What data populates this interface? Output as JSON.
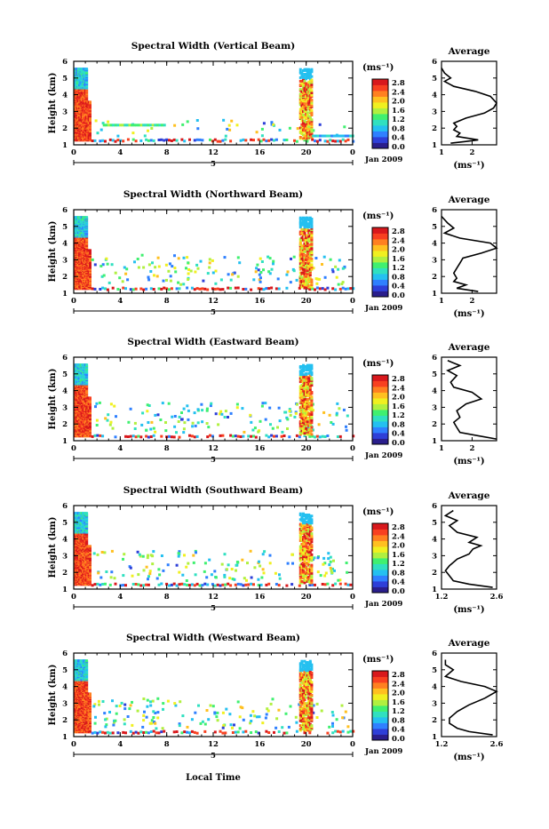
{
  "page": {
    "x_axis_label": "Local Time",
    "date_label": "Jan 2009",
    "day_marker": "5",
    "colorbar_unit": "(ms⁻¹)",
    "average_title": "Average",
    "average_xlabel": "(ms⁻¹)",
    "colorbar_colors": [
      "#2a1e8c",
      "#2e3fd8",
      "#2f80ff",
      "#24c0f0",
      "#30e0c0",
      "#40f070",
      "#b0f040",
      "#f0f020",
      "#ffc020",
      "#ff8020",
      "#f84020",
      "#d8181c"
    ]
  },
  "chart_data": [
    {
      "type": "heatmap",
      "title": "Spectral Width (Vertical Beam)",
      "ylabel": "Height (km)",
      "xlabel": "Local Time",
      "x_ticks": [
        "0",
        "4",
        "8",
        "12",
        "16",
        "20",
        "0"
      ],
      "y_ticks": [
        "1",
        "2",
        "3",
        "4",
        "5",
        "6"
      ],
      "xlim": [
        0,
        24
      ],
      "ylim": [
        1,
        6
      ],
      "colorbar": {
        "unit": "(ms⁻¹)",
        "ticks": [
          "2.8",
          "2.4",
          "2.0",
          "1.6",
          "1.2",
          "0.8",
          "0.4",
          "0.0"
        ],
        "range": [
          0.0,
          2.8
        ]
      },
      "date_label": "Jan 2009",
      "day_marker": "5",
      "average": {
        "title": "Average",
        "xlabel": "(ms⁻¹)",
        "x_ticks": [
          "1",
          "2"
        ],
        "xlim": [
          1,
          2.8
        ],
        "profile": [
          [
            1.3,
            1.1
          ],
          [
            1.8,
            1.2
          ],
          [
            2.2,
            1.3
          ],
          [
            1.5,
            1.5
          ],
          [
            1.6,
            1.7
          ],
          [
            1.4,
            1.9
          ],
          [
            1.5,
            2.1
          ],
          [
            1.4,
            2.3
          ],
          [
            1.8,
            2.6
          ],
          [
            2.4,
            2.9
          ],
          [
            2.7,
            3.2
          ],
          [
            2.8,
            3.5
          ],
          [
            2.6,
            3.9
          ],
          [
            2.1,
            4.2
          ],
          [
            1.4,
            4.5
          ],
          [
            1.1,
            4.8
          ],
          [
            1.3,
            5.0
          ],
          [
            1.1,
            5.3
          ],
          [
            1.0,
            5.6
          ]
        ]
      }
    },
    {
      "type": "heatmap",
      "title": "Spectral Width (Northward Beam)",
      "ylabel": "Height (km)",
      "xlabel": "Local Time",
      "x_ticks": [
        "0",
        "4",
        "8",
        "12",
        "16",
        "20",
        "0"
      ],
      "y_ticks": [
        "1",
        "2",
        "3",
        "4",
        "5",
        "6"
      ],
      "xlim": [
        0,
        24
      ],
      "ylim": [
        1,
        6
      ],
      "colorbar": {
        "unit": "(ms⁻¹)",
        "ticks": [
          "2.8",
          "2.4",
          "2.0",
          "1.6",
          "1.2",
          "0.8",
          "0.4",
          "0.0"
        ],
        "range": [
          0.0,
          2.8
        ]
      },
      "date_label": "Jan 2009",
      "day_marker": "5",
      "average": {
        "title": "Average",
        "xlabel": "(ms⁻¹)",
        "x_ticks": [
          "1",
          "2"
        ],
        "xlim": [
          1,
          2.8
        ],
        "profile": [
          [
            2.2,
            1.1
          ],
          [
            1.5,
            1.3
          ],
          [
            1.8,
            1.5
          ],
          [
            1.4,
            1.7
          ],
          [
            1.5,
            1.9
          ],
          [
            1.4,
            2.2
          ],
          [
            1.5,
            2.5
          ],
          [
            1.6,
            2.8
          ],
          [
            1.7,
            3.1
          ],
          [
            2.3,
            3.4
          ],
          [
            2.8,
            3.7
          ],
          [
            2.6,
            4.0
          ],
          [
            1.6,
            4.3
          ],
          [
            1.1,
            4.6
          ],
          [
            1.4,
            4.9
          ],
          [
            1.2,
            5.2
          ],
          [
            1.0,
            5.6
          ]
        ]
      }
    },
    {
      "type": "heatmap",
      "title": "Spectral Width (Eastward Beam)",
      "ylabel": "Height (km)",
      "xlabel": "Local Time",
      "x_ticks": [
        "0",
        "4",
        "8",
        "12",
        "16",
        "20",
        "0"
      ],
      "y_ticks": [
        "1",
        "2",
        "3",
        "4",
        "5",
        "6"
      ],
      "xlim": [
        0,
        24
      ],
      "ylim": [
        1,
        6
      ],
      "colorbar": {
        "unit": "(ms⁻¹)",
        "ticks": [
          "2.8",
          "2.4",
          "2.0",
          "1.6",
          "1.2",
          "0.8",
          "0.4",
          "0.0"
        ],
        "range": [
          0.0,
          2.8
        ]
      },
      "date_label": "Jan 2009",
      "day_marker": "5",
      "average": {
        "title": "Average",
        "xlabel": "(ms⁻¹)",
        "x_ticks": [
          "1",
          "2"
        ],
        "xlim": [
          1,
          2.8
        ],
        "profile": [
          [
            2.8,
            1.1
          ],
          [
            2.2,
            1.3
          ],
          [
            1.6,
            1.5
          ],
          [
            1.5,
            1.8
          ],
          [
            1.4,
            2.1
          ],
          [
            1.6,
            2.4
          ],
          [
            1.5,
            2.8
          ],
          [
            1.8,
            3.2
          ],
          [
            2.3,
            3.5
          ],
          [
            2.0,
            3.9
          ],
          [
            1.4,
            4.2
          ],
          [
            1.3,
            4.5
          ],
          [
            1.5,
            4.9
          ],
          [
            1.2,
            5.2
          ],
          [
            1.6,
            5.5
          ],
          [
            1.2,
            5.8
          ]
        ]
      }
    },
    {
      "type": "heatmap",
      "title": "Spectral Width (Southward Beam)",
      "ylabel": "Height (km)",
      "xlabel": "Local Time",
      "x_ticks": [
        "0",
        "4",
        "8",
        "12",
        "16",
        "20",
        "0"
      ],
      "y_ticks": [
        "1",
        "2",
        "3",
        "4",
        "5",
        "6"
      ],
      "xlim": [
        0,
        24
      ],
      "ylim": [
        1,
        6
      ],
      "colorbar": {
        "unit": "(ms⁻¹)",
        "ticks": [
          "2.8",
          "2.4",
          "2.0",
          "1.6",
          "1.2",
          "0.8",
          "0.4",
          "0.0"
        ],
        "range": [
          0.0,
          2.8
        ]
      },
      "date_label": "Jan 2009",
      "day_marker": "5",
      "average": {
        "title": "Average",
        "xlabel": "(ms⁻¹)",
        "x_ticks": [
          "1.2",
          "2.6"
        ],
        "xlim": [
          1.2,
          2.6
        ],
        "profile": [
          [
            2.5,
            1.1
          ],
          [
            1.9,
            1.3
          ],
          [
            1.5,
            1.5
          ],
          [
            1.4,
            1.8
          ],
          [
            1.3,
            2.1
          ],
          [
            1.4,
            2.4
          ],
          [
            1.6,
            2.8
          ],
          [
            1.9,
            3.1
          ],
          [
            2.0,
            3.4
          ],
          [
            2.2,
            3.6
          ],
          [
            1.9,
            3.8
          ],
          [
            2.1,
            4.1
          ],
          [
            1.6,
            4.4
          ],
          [
            1.4,
            4.8
          ],
          [
            1.6,
            5.1
          ],
          [
            1.3,
            5.4
          ],
          [
            1.5,
            5.7
          ]
        ]
      }
    },
    {
      "type": "heatmap",
      "title": "Spectral Width (Westward Beam)",
      "ylabel": "Height (km)",
      "xlabel": "Local Time",
      "x_ticks": [
        "0",
        "4",
        "8",
        "12",
        "16",
        "20",
        "0"
      ],
      "y_ticks": [
        "1",
        "2",
        "3",
        "4",
        "5",
        "6"
      ],
      "xlim": [
        0,
        24
      ],
      "ylim": [
        1,
        6
      ],
      "colorbar": {
        "unit": "(ms⁻¹)",
        "ticks": [
          "2.8",
          "2.4",
          "2.0",
          "1.6",
          "1.2",
          "0.8",
          "0.4",
          "0.0"
        ],
        "range": [
          0.0,
          2.8
        ]
      },
      "date_label": "Jan 2009",
      "day_marker": "5",
      "average": {
        "title": "Average",
        "xlabel": "(ms⁻¹)",
        "x_ticks": [
          "1.2",
          "2.6"
        ],
        "xlim": [
          1.2,
          2.6
        ],
        "profile": [
          [
            2.5,
            1.1
          ],
          [
            1.9,
            1.3
          ],
          [
            1.6,
            1.5
          ],
          [
            1.4,
            1.8
          ],
          [
            1.4,
            2.1
          ],
          [
            1.6,
            2.5
          ],
          [
            1.9,
            2.9
          ],
          [
            2.3,
            3.3
          ],
          [
            2.6,
            3.7
          ],
          [
            2.3,
            4.0
          ],
          [
            1.7,
            4.3
          ],
          [
            1.3,
            4.6
          ],
          [
            1.5,
            5.0
          ],
          [
            1.3,
            5.3
          ],
          [
            1.3,
            5.6
          ]
        ]
      }
    }
  ]
}
